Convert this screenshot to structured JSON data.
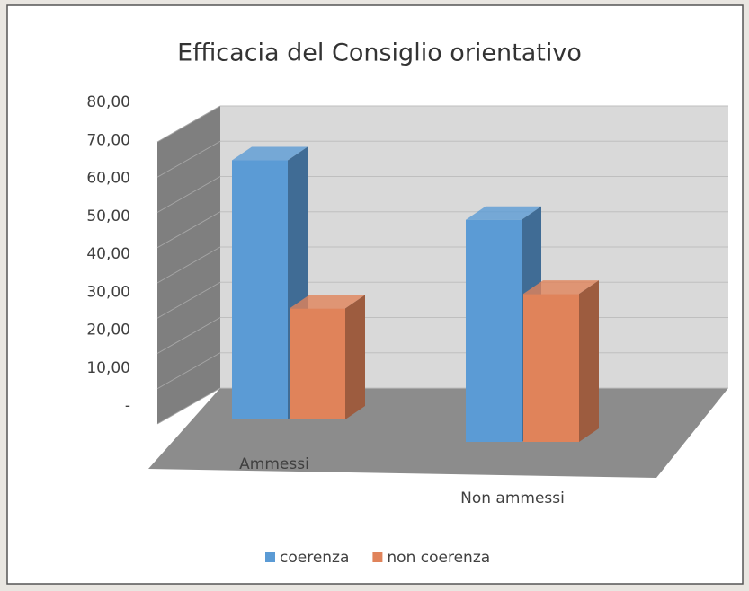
{
  "chart_data": {
    "type": "bar3d",
    "title": "Efficacia del Consiglio orientativo",
    "categories": [
      "Ammessi",
      "Non ammessi"
    ],
    "series": [
      {
        "name": "coerenza",
        "color": "#5b9bd5",
        "values": [
          70,
          60
        ]
      },
      {
        "name": "non coerenza",
        "color": "#e0835a",
        "values": [
          30,
          40
        ]
      }
    ],
    "ylim": [
      0,
      80
    ],
    "yticks": [
      {
        "value": 0,
        "label": "-"
      },
      {
        "value": 10,
        "label": "10,00"
      },
      {
        "value": 20,
        "label": "20,00"
      },
      {
        "value": 30,
        "label": "30,00"
      },
      {
        "value": 40,
        "label": "40,00"
      },
      {
        "value": 50,
        "label": "50,00"
      },
      {
        "value": 60,
        "label": "60,00"
      },
      {
        "value": 70,
        "label": "70,00"
      },
      {
        "value": 80,
        "label": "80,00"
      }
    ],
    "grid": true,
    "legend": "bottom"
  }
}
